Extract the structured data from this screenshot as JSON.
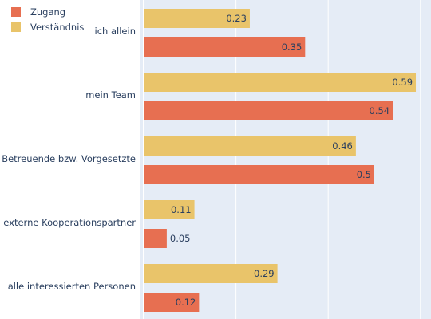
{
  "chart_data": {
    "type": "bar",
    "orientation": "horizontal",
    "categories": [
      "ich allein",
      "mein Team",
      "Betreuende bzw. Vorgesetzte",
      "externe Kooperationspartner",
      "alle interessierten Personen"
    ],
    "series": [
      {
        "name": "Verständnis",
        "color": "#e9c46a",
        "values": [
          0.23,
          0.59,
          0.46,
          0.11,
          0.29
        ]
      },
      {
        "name": "Zugang",
        "color": "#e76f51",
        "values": [
          0.35,
          0.54,
          0.5,
          0.05,
          0.12
        ]
      }
    ],
    "legend": {
      "placement": "top-left",
      "entries": [
        "Zugang",
        "Verständnis"
      ]
    },
    "xlim": [
      0,
      0.6
    ],
    "grid": true,
    "plot_background": "#e5ecf6",
    "grid_color": "#ffffff"
  }
}
